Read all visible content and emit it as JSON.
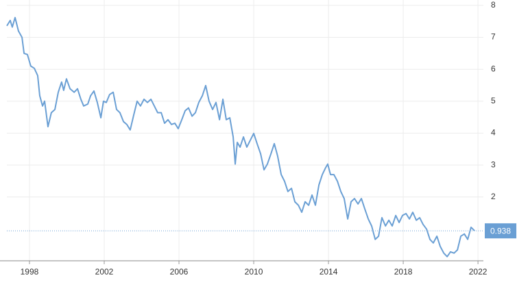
{
  "chart_data": {
    "type": "line",
    "color": "#6a9fd4",
    "grid": true,
    "xlim": [
      1996.79,
      2022.29
    ],
    "xticks": [
      1998,
      2002,
      2006,
      2010,
      2014,
      2018,
      2022
    ],
    "ylim": [
      0,
      8.17
    ],
    "yticks": [
      2,
      3,
      4,
      5,
      6,
      7,
      8
    ],
    "x": [
      1996.79,
      1996.97,
      1997.08,
      1997.23,
      1997.41,
      1997.6,
      1997.71,
      1997.89,
      1998.07,
      1998.26,
      1998.44,
      1998.55,
      1998.7,
      1998.81,
      1998.99,
      1999.17,
      1999.36,
      1999.54,
      1999.72,
      1999.83,
      1999.98,
      2000.17,
      2000.39,
      2000.57,
      2000.75,
      2000.9,
      2001.12,
      2001.27,
      2001.45,
      2001.63,
      2001.82,
      2001.96,
      2002.11,
      2002.29,
      2002.48,
      2002.66,
      2002.84,
      2003.03,
      2003.21,
      2003.39,
      2003.58,
      2003.76,
      2003.94,
      2004.13,
      2004.31,
      2004.5,
      2004.68,
      2004.86,
      2005.05,
      2005.23,
      2005.41,
      2005.6,
      2005.78,
      2005.96,
      2006.15,
      2006.33,
      2006.51,
      2006.7,
      2006.88,
      2007.06,
      2007.25,
      2007.43,
      2007.61,
      2007.8,
      2007.98,
      2008.17,
      2008.35,
      2008.53,
      2008.72,
      2008.9,
      2009.01,
      2009.12,
      2009.27,
      2009.45,
      2009.63,
      2009.82,
      2010.0,
      2010.18,
      2010.37,
      2010.55,
      2010.73,
      2010.92,
      2011.1,
      2011.28,
      2011.47,
      2011.65,
      2011.83,
      2012.02,
      2012.2,
      2012.39,
      2012.57,
      2012.75,
      2012.94,
      2013.12,
      2013.3,
      2013.49,
      2013.67,
      2013.85,
      2013.96,
      2014.11,
      2014.29,
      2014.48,
      2014.66,
      2014.84,
      2015.03,
      2015.21,
      2015.39,
      2015.58,
      2015.76,
      2015.94,
      2016.13,
      2016.31,
      2016.5,
      2016.68,
      2016.86,
      2017.05,
      2017.23,
      2017.41,
      2017.6,
      2017.78,
      2017.96,
      2018.15,
      2018.33,
      2018.51,
      2018.7,
      2018.88,
      2019.06,
      2019.25,
      2019.43,
      2019.61,
      2019.8,
      2019.98,
      2020.17,
      2020.35,
      2020.53,
      2020.72,
      2020.9,
      2021.08,
      2021.27,
      2021.45,
      2021.63,
      2021.82
    ],
    "values": [
      7.36,
      7.53,
      7.32,
      7.62,
      7.2,
      7.0,
      6.5,
      6.46,
      6.1,
      6.03,
      5.8,
      5.17,
      4.85,
      5.0,
      4.2,
      4.64,
      4.74,
      5.28,
      5.6,
      5.34,
      5.7,
      5.39,
      5.28,
      5.39,
      5.06,
      4.85,
      4.91,
      5.17,
      5.32,
      4.96,
      4.48,
      5.0,
      4.96,
      5.21,
      5.28,
      4.74,
      4.64,
      4.36,
      4.27,
      4.1,
      4.57,
      5.0,
      4.85,
      5.06,
      4.96,
      5.06,
      4.85,
      4.64,
      4.64,
      4.31,
      4.42,
      4.27,
      4.31,
      4.14,
      4.42,
      4.7,
      4.79,
      4.53,
      4.64,
      4.96,
      5.17,
      5.49,
      5.0,
      4.74,
      4.96,
      4.42,
      5.06,
      4.42,
      4.48,
      3.88,
      3.03,
      3.71,
      3.56,
      3.88,
      3.56,
      3.78,
      3.99,
      3.67,
      3.35,
      2.85,
      3.03,
      3.35,
      3.67,
      3.28,
      2.7,
      2.49,
      2.17,
      2.27,
      1.85,
      1.74,
      1.52,
      1.85,
      1.74,
      2.06,
      1.74,
      2.38,
      2.7,
      2.92,
      3.03,
      2.7,
      2.7,
      2.49,
      2.17,
      1.95,
      1.31,
      1.85,
      1.95,
      1.78,
      1.95,
      1.63,
      1.31,
      1.09,
      0.67,
      0.77,
      1.35,
      1.09,
      1.27,
      1.09,
      1.42,
      1.2,
      1.42,
      1.48,
      1.31,
      1.52,
      1.27,
      1.35,
      1.14,
      0.99,
      0.67,
      0.56,
      0.77,
      0.45,
      0.24,
      0.13,
      0.28,
      0.24,
      0.34,
      0.77,
      0.84,
      0.67,
      1.05,
      0.938
    ]
  }
}
